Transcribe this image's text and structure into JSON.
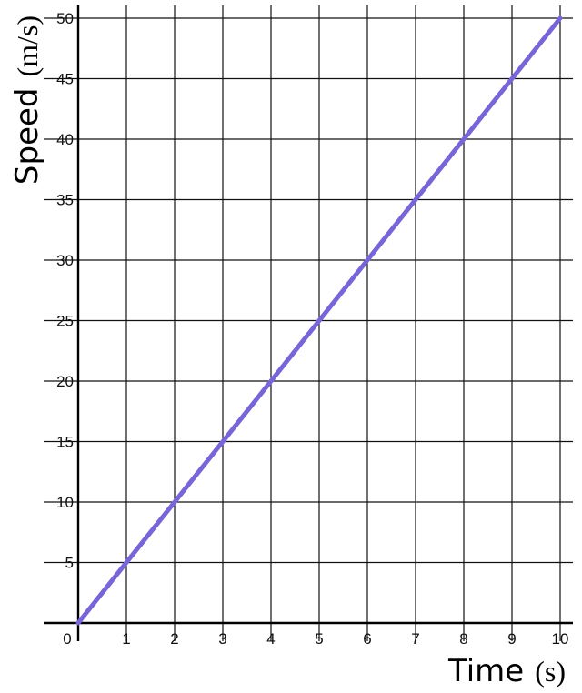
{
  "chart_data": {
    "type": "line",
    "title": "",
    "xlabel": "Time",
    "xlabel_unit": "(s)",
    "ylabel": "Speed",
    "ylabel_unit": "(m/s)",
    "xlim": [
      0,
      10
    ],
    "ylim": [
      0,
      50
    ],
    "x_ticks": [
      "0",
      "1",
      "2",
      "3",
      "4",
      "5",
      "6",
      "7",
      "8",
      "9",
      "10"
    ],
    "y_ticks": [
      "5",
      "10",
      "15",
      "20",
      "25",
      "30",
      "35",
      "40",
      "45",
      "50"
    ],
    "grid": true,
    "series": [
      {
        "x": [
          0,
          10
        ],
        "y": [
          0,
          50
        ],
        "color": "#7766d8"
      }
    ]
  }
}
